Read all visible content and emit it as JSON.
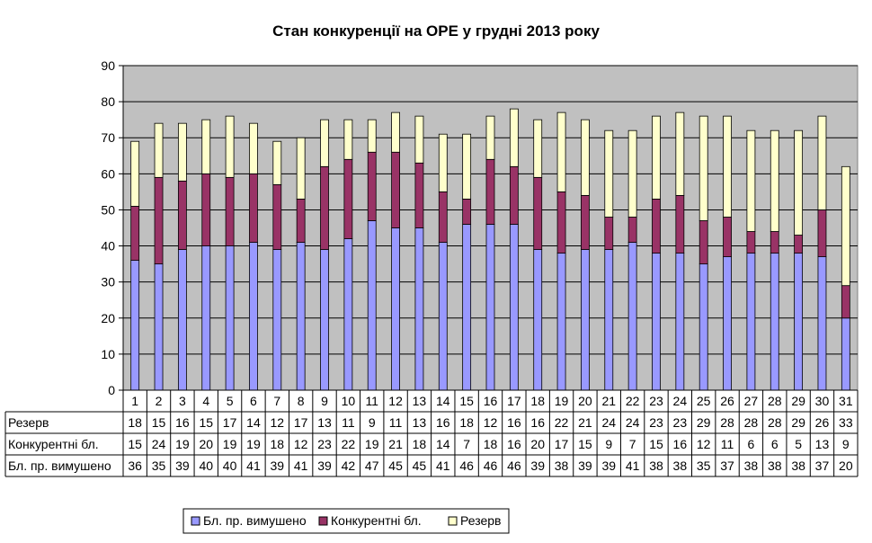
{
  "chart_data": {
    "type": "bar",
    "stacked": true,
    "title": "Стан конкуренції на ОРЕ  у грудні 2013 року",
    "xlabel": "",
    "ylabel": "",
    "ylim": [
      0,
      90
    ],
    "yticks": [
      0,
      10,
      20,
      30,
      40,
      50,
      60,
      70,
      80,
      90
    ],
    "grid": true,
    "legend_position": "bottom",
    "plot_background": "#c0c0c0",
    "categories": [
      "1",
      "2",
      "3",
      "4",
      "5",
      "6",
      "7",
      "8",
      "9",
      "10",
      "11",
      "12",
      "13",
      "14",
      "15",
      "16",
      "17",
      "18",
      "19",
      "20",
      "21",
      "22",
      "23",
      "24",
      "25",
      "26",
      "27",
      "28",
      "29",
      "30",
      "31"
    ],
    "series": [
      {
        "name": "Бл. пр. вимушено",
        "color": "#9999ff",
        "values": [
          36,
          35,
          39,
          40,
          40,
          41,
          39,
          41,
          39,
          42,
          47,
          45,
          45,
          41,
          46,
          46,
          46,
          39,
          38,
          39,
          39,
          41,
          38,
          38,
          35,
          37,
          38,
          38,
          38,
          37,
          20
        ]
      },
      {
        "name": "Конкурентні бл.",
        "color": "#993366",
        "values": [
          15,
          24,
          19,
          20,
          19,
          19,
          18,
          12,
          23,
          22,
          19,
          21,
          18,
          14,
          7,
          18,
          16,
          20,
          17,
          15,
          9,
          7,
          15,
          16,
          12,
          11,
          6,
          6,
          5,
          13,
          9
        ]
      },
      {
        "name": "Резерв",
        "color": "#ffffcc",
        "values": [
          18,
          15,
          16,
          15,
          17,
          14,
          12,
          17,
          13,
          11,
          9,
          11,
          13,
          16,
          18,
          12,
          16,
          16,
          22,
          21,
          24,
          24,
          23,
          23,
          29,
          28,
          28,
          28,
          29,
          26,
          33
        ]
      }
    ],
    "table_rows": [
      {
        "label": "Резерв",
        "series_index": 2
      },
      {
        "label": "Конкурентні бл.",
        "series_index": 1
      },
      {
        "label": "Бл. пр. вимушено",
        "series_index": 0
      }
    ],
    "legend_order": [
      0,
      1,
      2
    ]
  }
}
